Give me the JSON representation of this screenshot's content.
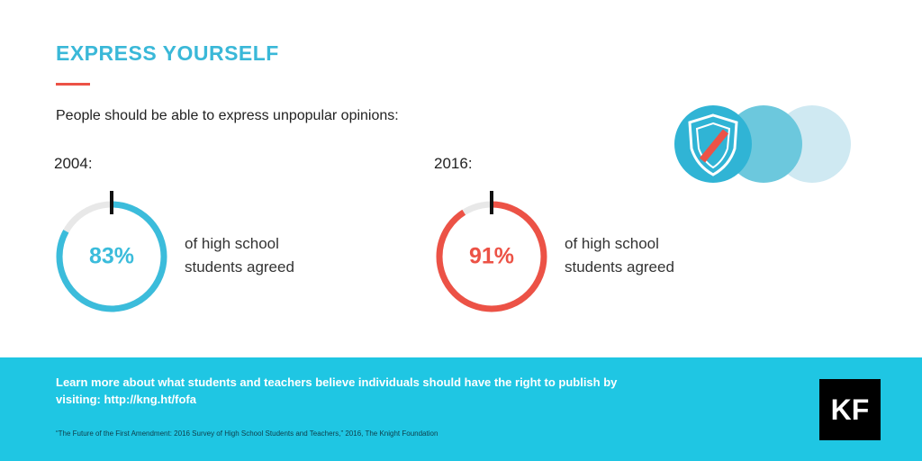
{
  "header": {
    "title": "EXPRESS YOURSELF"
  },
  "question": "People should be able to express unpopular opinions:",
  "chart_data": [
    {
      "type": "donut",
      "title": "2004:",
      "values": [
        83
      ],
      "value_labels": [
        "83%"
      ],
      "ylim": [
        0,
        100
      ],
      "color": "#3bbcdb",
      "caption": "of high school students agreed"
    },
    {
      "type": "donut",
      "title": "2016:",
      "values": [
        91
      ],
      "value_labels": [
        "91%"
      ],
      "ylim": [
        0,
        100
      ],
      "color": "#ec5246",
      "caption": "of high school students agreed"
    }
  ],
  "footer": {
    "text": "Learn more about what students and teachers believe individuals should have the right to publish by visiting: http://kng.ht/fofa",
    "citation": "“The Future of the First Amendment: 2016 Survey of High School Students and Teachers,” 2016, The Knight Foundation"
  },
  "logo": "KF"
}
